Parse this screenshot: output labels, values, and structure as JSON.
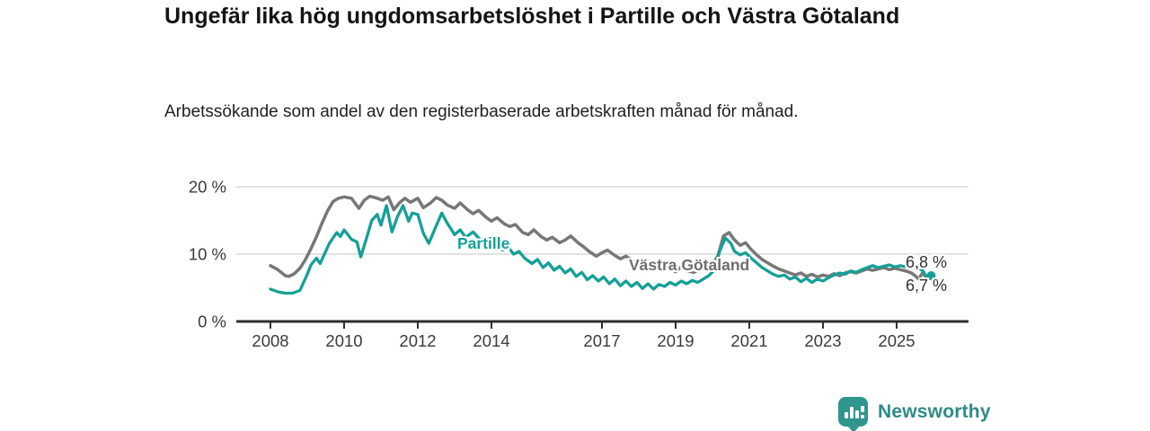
{
  "header": {
    "title": "Ungefär lika hög ungdomsarbetslöshet i Partille och Västra Götaland",
    "subtitle": "Arbetssökande som andel av den registerbaserade arbetskraften månad för månad."
  },
  "footer": {
    "brand": "Newsworthy",
    "brand_color": "#2f968e",
    "brand_text_color": "#2d8b87"
  },
  "chart_data": {
    "type": "line",
    "unit": "%",
    "grid": "horizontal-only",
    "legend_position": "inline-labels",
    "ylim": [
      0,
      20
    ],
    "xlim": [
      2007.6,
      2026.2
    ],
    "y_ticks": [
      {
        "label": "0 %",
        "value": 0
      },
      {
        "label": "10 %",
        "value": 10
      },
      {
        "label": "20 %",
        "value": 20
      }
    ],
    "x_ticks": [
      {
        "label": "2008",
        "value": 2008
      },
      {
        "label": "2010",
        "value": 2010
      },
      {
        "label": "2012",
        "value": 2012
      },
      {
        "label": "2014",
        "value": 2014
      },
      {
        "label": "2017",
        "value": 2017
      },
      {
        "label": "2019",
        "value": 2019
      },
      {
        "label": "2021",
        "value": 2021
      },
      {
        "label": "2023",
        "value": 2023
      },
      {
        "label": "2025",
        "value": 2025
      }
    ],
    "series": [
      {
        "name": "Partille",
        "color": "#14a096",
        "end_label": "6,8 %",
        "end_value": 6.8,
        "end_dot": true,
        "points": [
          [
            2008.0,
            4.8
          ],
          [
            2008.2,
            4.4
          ],
          [
            2008.4,
            4.2
          ],
          [
            2008.6,
            4.2
          ],
          [
            2008.8,
            4.6
          ],
          [
            2009.0,
            7.0
          ],
          [
            2009.1,
            8.4
          ],
          [
            2009.25,
            9.4
          ],
          [
            2009.35,
            8.6
          ],
          [
            2009.6,
            11.6
          ],
          [
            2009.8,
            13.2
          ],
          [
            2009.9,
            12.6
          ],
          [
            2010.0,
            13.6
          ],
          [
            2010.2,
            12.2
          ],
          [
            2010.35,
            11.8
          ],
          [
            2010.45,
            9.6
          ],
          [
            2010.6,
            12.2
          ],
          [
            2010.75,
            15.0
          ],
          [
            2010.9,
            15.9
          ],
          [
            2011.0,
            14.3
          ],
          [
            2011.15,
            17.2
          ],
          [
            2011.3,
            13.3
          ],
          [
            2011.45,
            15.6
          ],
          [
            2011.6,
            17.2
          ],
          [
            2011.75,
            14.9
          ],
          [
            2011.85,
            16.1
          ],
          [
            2012.0,
            15.9
          ],
          [
            2012.15,
            13.1
          ],
          [
            2012.3,
            11.6
          ],
          [
            2012.5,
            14.2
          ],
          [
            2012.65,
            16.1
          ],
          [
            2012.8,
            14.6
          ],
          [
            2013.0,
            12.9
          ],
          [
            2013.15,
            13.6
          ],
          [
            2013.3,
            12.5
          ],
          [
            2013.5,
            13.3
          ],
          [
            2013.65,
            12.4
          ],
          [
            2013.8,
            11.6
          ],
          [
            2014.0,
            12.3
          ],
          [
            2014.15,
            11.3
          ],
          [
            2014.3,
            10.6
          ],
          [
            2014.45,
            11.1
          ],
          [
            2014.6,
            10.0
          ],
          [
            2014.75,
            10.4
          ],
          [
            2014.9,
            9.4
          ],
          [
            2015.1,
            8.6
          ],
          [
            2015.25,
            9.2
          ],
          [
            2015.4,
            8.0
          ],
          [
            2015.55,
            8.7
          ],
          [
            2015.7,
            7.6
          ],
          [
            2015.85,
            8.2
          ],
          [
            2016.0,
            7.2
          ],
          [
            2016.15,
            7.8
          ],
          [
            2016.3,
            6.7
          ],
          [
            2016.45,
            7.3
          ],
          [
            2016.6,
            6.2
          ],
          [
            2016.75,
            6.8
          ],
          [
            2016.9,
            6.0
          ],
          [
            2017.05,
            6.6
          ],
          [
            2017.2,
            5.6
          ],
          [
            2017.35,
            6.3
          ],
          [
            2017.5,
            5.3
          ],
          [
            2017.65,
            6.0
          ],
          [
            2017.8,
            5.2
          ],
          [
            2017.95,
            5.8
          ],
          [
            2018.1,
            4.9
          ],
          [
            2018.25,
            5.6
          ],
          [
            2018.4,
            4.8
          ],
          [
            2018.55,
            5.5
          ],
          [
            2018.7,
            5.2
          ],
          [
            2018.85,
            5.8
          ],
          [
            2019.0,
            5.4
          ],
          [
            2019.15,
            6.0
          ],
          [
            2019.3,
            5.6
          ],
          [
            2019.45,
            6.1
          ],
          [
            2019.6,
            5.8
          ],
          [
            2019.75,
            6.3
          ],
          [
            2019.9,
            6.8
          ],
          [
            2020.05,
            7.6
          ],
          [
            2020.2,
            10.5
          ],
          [
            2020.35,
            12.4
          ],
          [
            2020.5,
            11.6
          ],
          [
            2020.6,
            10.4
          ],
          [
            2020.75,
            9.9
          ],
          [
            2020.9,
            10.2
          ],
          [
            2021.05,
            9.4
          ],
          [
            2021.2,
            8.7
          ],
          [
            2021.35,
            8.0
          ],
          [
            2021.5,
            7.5
          ],
          [
            2021.65,
            7.0
          ],
          [
            2021.8,
            6.7
          ],
          [
            2021.95,
            6.9
          ],
          [
            2022.1,
            6.3
          ],
          [
            2022.25,
            6.6
          ],
          [
            2022.4,
            5.9
          ],
          [
            2022.55,
            6.4
          ],
          [
            2022.7,
            5.8
          ],
          [
            2022.85,
            6.3
          ],
          [
            2023.0,
            6.0
          ],
          [
            2023.15,
            6.5
          ],
          [
            2023.3,
            6.9
          ],
          [
            2023.45,
            7.2
          ],
          [
            2023.6,
            7.0
          ],
          [
            2023.75,
            7.5
          ],
          [
            2023.9,
            7.3
          ],
          [
            2024.05,
            7.7
          ],
          [
            2024.2,
            8.0
          ],
          [
            2024.35,
            8.3
          ],
          [
            2024.5,
            8.0
          ],
          [
            2024.65,
            8.2
          ],
          [
            2024.8,
            8.4
          ],
          [
            2024.95,
            8.1
          ],
          [
            2025.1,
            8.3
          ],
          [
            2025.25,
            8.1
          ],
          [
            2025.4,
            8.3
          ],
          [
            2025.55,
            8.0
          ],
          [
            2025.7,
            7.6
          ],
          [
            2025.79,
            6.8
          ]
        ]
      },
      {
        "name": "Västra Götaland",
        "color": "#777777",
        "label_color": "#6e6e6e",
        "end_label": "6,7 %",
        "end_value": 6.7,
        "end_dot": false,
        "points": [
          [
            2008.0,
            8.3
          ],
          [
            2008.2,
            7.7
          ],
          [
            2008.4,
            6.8
          ],
          [
            2008.5,
            6.7
          ],
          [
            2008.65,
            7.1
          ],
          [
            2008.8,
            7.9
          ],
          [
            2008.95,
            9.2
          ],
          [
            2009.1,
            10.8
          ],
          [
            2009.25,
            12.6
          ],
          [
            2009.4,
            14.6
          ],
          [
            2009.55,
            16.4
          ],
          [
            2009.7,
            17.8
          ],
          [
            2009.85,
            18.3
          ],
          [
            2010.0,
            18.5
          ],
          [
            2010.2,
            18.3
          ],
          [
            2010.4,
            16.8
          ],
          [
            2010.55,
            18.0
          ],
          [
            2010.7,
            18.6
          ],
          [
            2010.9,
            18.3
          ],
          [
            2011.05,
            18.0
          ],
          [
            2011.2,
            18.5
          ],
          [
            2011.35,
            16.6
          ],
          [
            2011.5,
            17.6
          ],
          [
            2011.65,
            18.3
          ],
          [
            2011.8,
            17.7
          ],
          [
            2012.0,
            18.3
          ],
          [
            2012.15,
            16.9
          ],
          [
            2012.35,
            17.6
          ],
          [
            2012.5,
            18.4
          ],
          [
            2012.65,
            18.0
          ],
          [
            2012.8,
            17.3
          ],
          [
            2013.0,
            16.8
          ],
          [
            2013.15,
            17.6
          ],
          [
            2013.35,
            16.6
          ],
          [
            2013.5,
            16.0
          ],
          [
            2013.65,
            16.5
          ],
          [
            2013.85,
            15.5
          ],
          [
            2014.0,
            14.9
          ],
          [
            2014.15,
            15.4
          ],
          [
            2014.35,
            14.5
          ],
          [
            2014.5,
            14.1
          ],
          [
            2014.65,
            14.4
          ],
          [
            2014.85,
            13.2
          ],
          [
            2015.0,
            12.9
          ],
          [
            2015.15,
            13.6
          ],
          [
            2015.35,
            12.6
          ],
          [
            2015.5,
            12.1
          ],
          [
            2015.65,
            12.5
          ],
          [
            2015.85,
            11.7
          ],
          [
            2016.0,
            12.1
          ],
          [
            2016.15,
            12.7
          ],
          [
            2016.35,
            11.7
          ],
          [
            2016.5,
            11.1
          ],
          [
            2016.65,
            10.4
          ],
          [
            2016.85,
            9.7
          ],
          [
            2017.0,
            10.2
          ],
          [
            2017.15,
            10.6
          ],
          [
            2017.35,
            9.8
          ],
          [
            2017.5,
            9.3
          ],
          [
            2017.65,
            9.7
          ],
          [
            2017.85,
            9.0
          ],
          [
            2018.0,
            8.7
          ],
          [
            2018.15,
            9.2
          ],
          [
            2018.35,
            8.5
          ],
          [
            2018.5,
            8.2
          ],
          [
            2018.65,
            8.5
          ],
          [
            2018.85,
            7.8
          ],
          [
            2019.0,
            7.4
          ],
          [
            2019.15,
            8.1
          ],
          [
            2019.35,
            7.5
          ],
          [
            2019.5,
            7.3
          ],
          [
            2019.65,
            7.8
          ],
          [
            2019.85,
            8.0
          ],
          [
            2020.0,
            8.4
          ],
          [
            2020.15,
            9.8
          ],
          [
            2020.3,
            12.7
          ],
          [
            2020.45,
            13.2
          ],
          [
            2020.6,
            12.1
          ],
          [
            2020.75,
            11.3
          ],
          [
            2020.9,
            11.7
          ],
          [
            2021.05,
            10.7
          ],
          [
            2021.2,
            9.9
          ],
          [
            2021.35,
            9.2
          ],
          [
            2021.5,
            8.7
          ],
          [
            2021.65,
            8.2
          ],
          [
            2021.8,
            7.8
          ],
          [
            2021.95,
            7.5
          ],
          [
            2022.1,
            7.2
          ],
          [
            2022.25,
            6.9
          ],
          [
            2022.4,
            7.2
          ],
          [
            2022.55,
            6.7
          ],
          [
            2022.7,
            7.0
          ],
          [
            2022.85,
            6.6
          ],
          [
            2023.0,
            6.9
          ],
          [
            2023.15,
            6.7
          ],
          [
            2023.3,
            7.1
          ],
          [
            2023.45,
            6.8
          ],
          [
            2023.6,
            7.2
          ],
          [
            2023.75,
            7.4
          ],
          [
            2023.9,
            7.2
          ],
          [
            2024.05,
            7.5
          ],
          [
            2024.2,
            7.8
          ],
          [
            2024.35,
            7.6
          ],
          [
            2024.5,
            7.8
          ],
          [
            2024.65,
            8.0
          ],
          [
            2024.8,
            7.7
          ],
          [
            2024.95,
            7.9
          ],
          [
            2025.1,
            7.7
          ],
          [
            2025.25,
            7.5
          ],
          [
            2025.4,
            7.2
          ],
          [
            2025.5,
            6.8
          ],
          [
            2025.6,
            6.3
          ],
          [
            2025.7,
            7.2
          ],
          [
            2025.79,
            6.7
          ]
        ]
      }
    ],
    "style": {
      "grid_color": "#d9d9d9",
      "axis_color": "#2f2f2f",
      "tick_text_color": "#3a3a3a"
    }
  }
}
